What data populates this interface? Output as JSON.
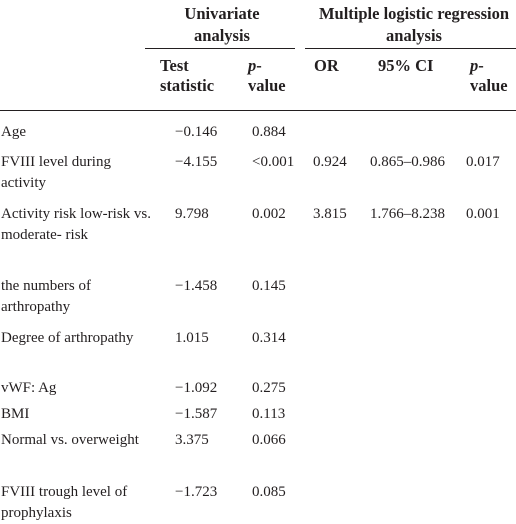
{
  "table": {
    "group_headers": {
      "univariate": "Univariate analysis",
      "multiple": "Multiple logistic regression analysis"
    },
    "column_headers": {
      "test_statistic": "Test statistic",
      "p_value_1": "p-value",
      "or": "OR",
      "ci": "95% CI",
      "p_value_2": "p-value"
    },
    "rows": [
      {
        "label": "Age",
        "test_statistic": "−0.146",
        "p_value_1": "0.884",
        "or": "",
        "ci": "",
        "p_value_2": ""
      },
      {
        "label": "FVIII level during activity",
        "test_statistic": "−4.155",
        "p_value_1": "<0.001",
        "or": "0.924",
        "ci": "0.865–0.986",
        "p_value_2": "0.017"
      },
      {
        "label": "Activity risk low-risk vs. moderate- risk",
        "test_statistic": "9.798",
        "p_value_1": "0.002",
        "or": "3.815",
        "ci": "1.766–8.238",
        "p_value_2": "0.001"
      },
      {
        "label": "the numbers of arthropathy",
        "test_statistic": "−1.458",
        "p_value_1": "0.145",
        "or": "",
        "ci": "",
        "p_value_2": ""
      },
      {
        "label": "Degree of arthropathy",
        "test_statistic": "1.015",
        "p_value_1": "0.314",
        "or": "",
        "ci": "",
        "p_value_2": ""
      },
      {
        "label": "vWF: Ag",
        "test_statistic": "−1.092",
        "p_value_1": "0.275",
        "or": "",
        "ci": "",
        "p_value_2": ""
      },
      {
        "label": "BMI",
        "test_statistic": "−1.587",
        "p_value_1": "0.113",
        "or": "",
        "ci": "",
        "p_value_2": ""
      },
      {
        "label": "Normal vs. overweight",
        "test_statistic": "3.375",
        "p_value_1": "0.066",
        "or": "",
        "ci": "",
        "p_value_2": ""
      },
      {
        "label": "FVIII trough level of prophylaxis",
        "test_statistic": "−1.723",
        "p_value_1": "0.085",
        "or": "",
        "ci": "",
        "p_value_2": ""
      }
    ]
  }
}
